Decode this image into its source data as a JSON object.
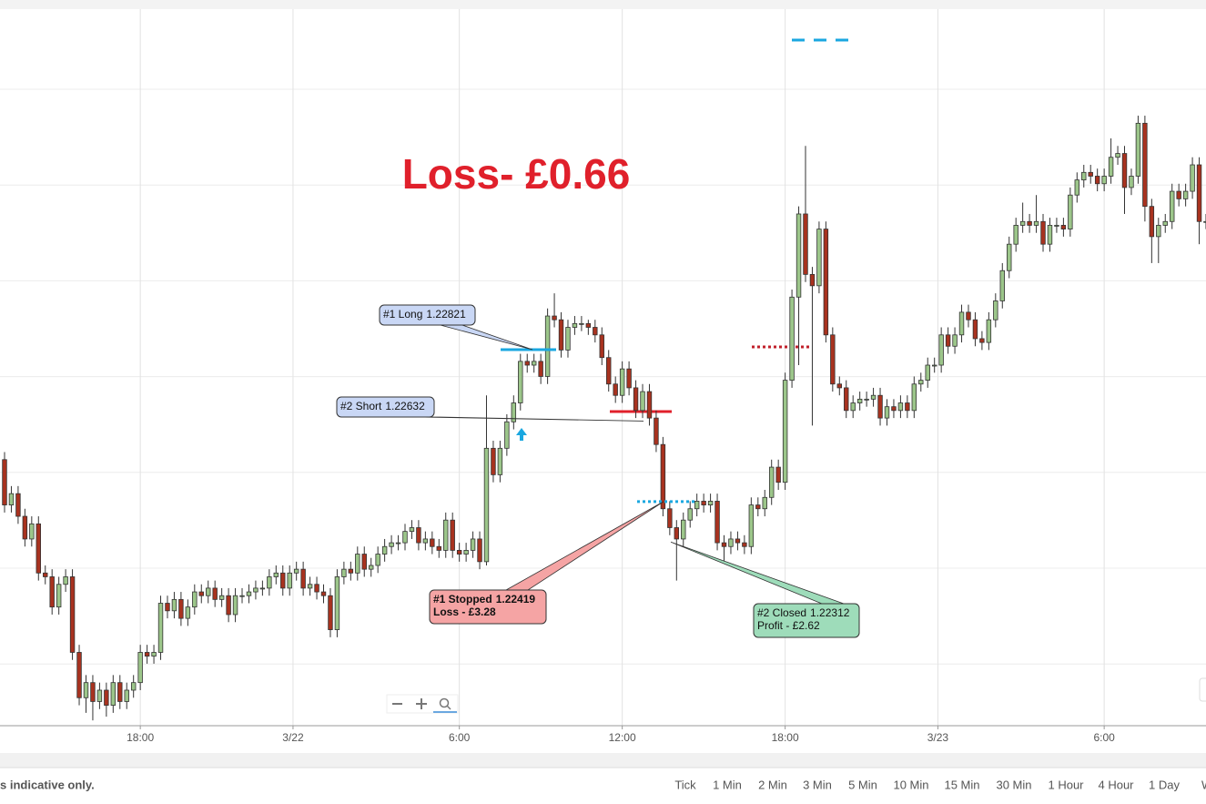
{
  "chart_data": {
    "type": "candlestick",
    "title": "Loss- £0.66",
    "up_color": "#9cc68a",
    "down_color": "#a8321f",
    "grid": true,
    "xlim": [
      -0.67,
      177
    ],
    "ylim": [
      1.21826,
      1.23722
    ],
    "xticks": [
      {
        "value": 20,
        "label": "18:00"
      },
      {
        "value": 42.5,
        "label": "3/22"
      },
      {
        "value": 67,
        "label": "6:00"
      },
      {
        "value": 91,
        "label": "12:00"
      },
      {
        "value": 115,
        "label": "18:00"
      },
      {
        "value": 137.5,
        "label": "3/23"
      },
      {
        "value": 162,
        "label": "6:00"
      }
    ],
    "open": [
      1.2253,
      1.2241,
      1.2244,
      1.2238,
      1.2232,
      1.2236,
      1.2223,
      1.2222,
      1.2214,
      1.222,
      1.2222,
      1.2202,
      1.219,
      1.2194,
      1.2189,
      1.2192,
      1.2188,
      1.2194,
      1.2189,
      1.2192,
      1.2194,
      1.2202,
      1.2201,
      1.2202,
      1.2215,
      1.2213,
      1.2216,
      1.2211,
      1.2214,
      1.2218,
      1.2217,
      1.2219,
      1.2216,
      1.2217,
      1.2212,
      1.2217,
      1.2217,
      1.2218,
      1.2219,
      1.2219,
      1.2222,
      1.2223,
      1.2219,
      1.2223,
      1.2224,
      1.2219,
      1.222,
      1.2218,
      1.2217,
      1.2208,
      1.2222,
      1.2224,
      1.2223,
      1.2228,
      1.2224,
      1.2225,
      1.2228,
      1.223,
      1.2231,
      1.2231,
      1.2234,
      1.2235,
      1.2231,
      1.2232,
      1.223,
      1.2229,
      1.2237,
      1.2229,
      1.2228,
      1.2229,
      1.2232,
      1.2226,
      1.2256,
      1.2249,
      1.2256,
      1.2263,
      1.2268,
      1.2279,
      1.2278,
      1.2279,
      1.2275,
      1.2291,
      1.229,
      1.2282,
      1.2288,
      1.2289,
      1.2289,
      1.2288,
      1.2286,
      1.228,
      1.2273,
      1.227,
      1.2277,
      1.2272,
      1.2266,
      1.2271,
      1.2264,
      1.2257,
      1.224,
      1.2235,
      1.2232,
      1.2237,
      1.224,
      1.2242,
      1.2241,
      1.2242,
      1.2231,
      1.223,
      1.2232,
      1.2231,
      1.223,
      1.2241,
      1.224,
      1.2243,
      1.2251,
      1.2247,
      1.2274,
      1.2296,
      1.2318,
      1.2302,
      1.2299,
      1.2314,
      1.2286,
      1.2273,
      1.2272,
      1.2266,
      1.2268,
      1.2269,
      1.2269,
      1.227,
      1.2264,
      1.2267,
      1.2266,
      1.2268,
      1.2266,
      1.2273,
      1.2274,
      1.2278,
      1.2278,
      1.2286,
      1.2283,
      1.2286,
      1.2292,
      1.229,
      1.2285,
      1.2284,
      1.229,
      1.2295,
      1.2303,
      1.231,
      1.2315,
      1.2316,
      1.2315,
      1.2316,
      1.231,
      1.2315,
      1.2315,
      1.2314,
      1.2323,
      1.2327,
      1.2329,
      1.2328,
      1.2326,
      1.2328,
      1.2333,
      1.2334,
      1.2325,
      1.2328,
      1.2342,
      1.232,
      1.2312,
      1.2315,
      1.2316,
      1.2324,
      1.2322,
      1.2324,
      1.2331,
      1.2316
    ],
    "high": [
      1.2255,
      1.2246,
      1.2246,
      1.224,
      1.2238,
      1.2238,
      1.2225,
      1.2224,
      1.2222,
      1.2224,
      1.2224,
      1.2204,
      1.2196,
      1.2196,
      1.2194,
      1.2194,
      1.2196,
      1.2196,
      1.2194,
      1.2196,
      1.2204,
      1.2204,
      1.2204,
      1.2217,
      1.2217,
      1.2218,
      1.2218,
      1.2216,
      1.222,
      1.222,
      1.2221,
      1.2221,
      1.2219,
      1.2219,
      1.2219,
      1.2219,
      1.222,
      1.2221,
      1.2221,
      1.2224,
      1.2225,
      1.2225,
      1.2225,
      1.2226,
      1.2226,
      1.2222,
      1.2222,
      1.222,
      1.2219,
      1.2224,
      1.2226,
      1.2226,
      1.223,
      1.223,
      1.2227,
      1.223,
      1.2232,
      1.2233,
      1.2233,
      1.2236,
      1.2237,
      1.2237,
      1.2234,
      1.2234,
      1.2232,
      1.2239,
      1.2239,
      1.2231,
      1.2231,
      1.2234,
      1.2234,
      1.227,
      1.2258,
      1.2258,
      1.2265,
      1.227,
      1.2281,
      1.2281,
      1.2281,
      1.2281,
      1.2293,
      1.2297,
      1.2292,
      1.229,
      1.2291,
      1.2291,
      1.229,
      1.229,
      1.2288,
      1.2282,
      1.2275,
      1.2279,
      1.2279,
      1.2274,
      1.2273,
      1.2273,
      1.2266,
      1.2259,
      1.2242,
      1.2237,
      1.2239,
      1.2242,
      1.2244,
      1.2244,
      1.2244,
      1.2244,
      1.2233,
      1.2234,
      1.2234,
      1.2233,
      1.2243,
      1.2243,
      1.2245,
      1.2253,
      1.2253,
      1.2276,
      1.2298,
      1.232,
      1.2336,
      1.2304,
      1.2316,
      1.2316,
      1.2288,
      1.2275,
      1.2274,
      1.227,
      1.2271,
      1.2271,
      1.2272,
      1.2272,
      1.2269,
      1.2269,
      1.227,
      1.227,
      1.2275,
      1.2276,
      1.228,
      1.228,
      1.2288,
      1.2288,
      1.2288,
      1.2294,
      1.2294,
      1.2292,
      1.2287,
      1.2292,
      1.2297,
      1.2305,
      1.2312,
      1.2317,
      1.2321,
      1.2318,
      1.2323,
      1.2318,
      1.2317,
      1.2317,
      1.2317,
      1.2325,
      1.2329,
      1.2331,
      1.2331,
      1.233,
      1.233,
      1.2338,
      1.2336,
      1.2336,
      1.233,
      1.2344,
      1.2344,
      1.2322,
      1.2317,
      1.2318,
      1.2326,
      1.2326,
      1.2326,
      1.2333,
      1.2333,
      1.2318
    ],
    "low": [
      1.2239,
      1.2239,
      1.2236,
      1.223,
      1.223,
      1.2221,
      1.222,
      1.2212,
      1.2212,
      1.2218,
      1.22,
      1.2188,
      1.2186,
      1.2184,
      1.2187,
      1.2185,
      1.2186,
      1.2187,
      1.2187,
      1.219,
      1.2192,
      1.2199,
      1.2199,
      1.22,
      1.2211,
      1.2211,
      1.2209,
      1.2209,
      1.2212,
      1.2215,
      1.2215,
      1.2214,
      1.2214,
      1.221,
      1.221,
      1.2215,
      1.2215,
      1.2216,
      1.2217,
      1.2217,
      1.222,
      1.2217,
      1.2217,
      1.2221,
      1.2217,
      1.2217,
      1.2216,
      1.2215,
      1.2206,
      1.2206,
      1.222,
      1.2221,
      1.2221,
      1.2222,
      1.2222,
      1.2223,
      1.2226,
      1.2228,
      1.2229,
      1.2229,
      1.2232,
      1.2229,
      1.2229,
      1.2228,
      1.2227,
      1.2227,
      1.2227,
      1.2226,
      1.2226,
      1.2227,
      1.2224,
      1.2225,
      1.2247,
      1.2247,
      1.2254,
      1.2261,
      1.2266,
      1.2276,
      1.2276,
      1.2273,
      1.2273,
      1.2288,
      1.228,
      1.228,
      1.2286,
      1.2287,
      1.2286,
      1.2284,
      1.2278,
      1.2271,
      1.2268,
      1.2268,
      1.227,
      1.2264,
      1.2264,
      1.2262,
      1.2255,
      1.2238,
      1.2233,
      1.2221,
      1.223,
      1.2235,
      1.2238,
      1.2239,
      1.2239,
      1.2229,
      1.2226,
      1.2228,
      1.2229,
      1.2228,
      1.2228,
      1.2238,
      1.2238,
      1.2241,
      1.2245,
      1.2245,
      1.2272,
      1.2278,
      1.23,
      1.2262,
      1.2297,
      1.2284,
      1.2271,
      1.227,
      1.2264,
      1.2264,
      1.2266,
      1.2267,
      1.2267,
      1.2262,
      1.2262,
      1.2264,
      1.2264,
      1.2264,
      1.2264,
      1.2271,
      1.2272,
      1.2276,
      1.2276,
      1.2281,
      1.2281,
      1.2284,
      1.2288,
      1.2283,
      1.2282,
      1.2282,
      1.2288,
      1.2293,
      1.2301,
      1.2308,
      1.2313,
      1.2313,
      1.2313,
      1.2308,
      1.2308,
      1.2313,
      1.2312,
      1.2312,
      1.2321,
      1.2325,
      1.2326,
      1.2324,
      1.2324,
      1.2326,
      1.2331,
      1.2318,
      1.2323,
      1.2326,
      1.2316,
      1.2305,
      1.2305,
      1.2313,
      1.2314,
      1.232,
      1.232,
      1.2322,
      1.231,
      1.2314
    ],
    "close": [
      1.2241,
      1.2244,
      1.2238,
      1.2232,
      1.2236,
      1.2223,
      1.2222,
      1.2214,
      1.222,
      1.2222,
      1.2202,
      1.219,
      1.2194,
      1.2189,
      1.2192,
      1.2188,
      1.2194,
      1.2189,
      1.2192,
      1.2194,
      1.2202,
      1.2201,
      1.2202,
      1.2215,
      1.2213,
      1.2216,
      1.2211,
      1.2214,
      1.2218,
      1.2217,
      1.2219,
      1.2216,
      1.2217,
      1.2212,
      1.2217,
      1.2217,
      1.2218,
      1.2219,
      1.2219,
      1.2222,
      1.2223,
      1.2219,
      1.2223,
      1.2224,
      1.2219,
      1.222,
      1.2218,
      1.2217,
      1.2208,
      1.2222,
      1.2224,
      1.2223,
      1.2228,
      1.2224,
      1.2225,
      1.2228,
      1.223,
      1.2231,
      1.2231,
      1.2234,
      1.2235,
      1.2231,
      1.2232,
      1.223,
      1.2229,
      1.2237,
      1.2229,
      1.2228,
      1.2229,
      1.2232,
      1.2226,
      1.2256,
      1.2249,
      1.2256,
      1.2263,
      1.2268,
      1.2279,
      1.2278,
      1.2279,
      1.2275,
      1.2291,
      1.229,
      1.2282,
      1.2288,
      1.2289,
      1.2289,
      1.2288,
      1.2286,
      1.228,
      1.2273,
      1.227,
      1.2277,
      1.2272,
      1.2266,
      1.2271,
      1.2264,
      1.2257,
      1.224,
      1.2235,
      1.2232,
      1.2237,
      1.224,
      1.2242,
      1.2241,
      1.2242,
      1.2231,
      1.223,
      1.2232,
      1.2231,
      1.223,
      1.2241,
      1.224,
      1.2243,
      1.2251,
      1.2247,
      1.2274,
      1.2296,
      1.2318,
      1.2302,
      1.2299,
      1.2314,
      1.2286,
      1.2273,
      1.2272,
      1.2266,
      1.2268,
      1.2269,
      1.2269,
      1.227,
      1.2264,
      1.2267,
      1.2266,
      1.2268,
      1.2266,
      1.2273,
      1.2274,
      1.2278,
      1.2278,
      1.2286,
      1.2283,
      1.2286,
      1.2292,
      1.229,
      1.2285,
      1.2284,
      1.229,
      1.2295,
      1.2303,
      1.231,
      1.2315,
      1.2316,
      1.2315,
      1.2316,
      1.231,
      1.2315,
      1.2315,
      1.2314,
      1.2323,
      1.2327,
      1.2329,
      1.2328,
      1.2326,
      1.2328,
      1.2333,
      1.2334,
      1.2325,
      1.2328,
      1.2342,
      1.232,
      1.2312,
      1.2315,
      1.2316,
      1.2324,
      1.2322,
      1.2324,
      1.2331,
      1.2316,
      1.2316
    ],
    "trades": [
      {
        "label": "#1 Long",
        "price": 1.22821,
        "color": "#c9d7f5"
      },
      {
        "label": "#2 Short",
        "price": 1.22632,
        "color": "#c9d7f5"
      },
      {
        "label": "#1 Stopped",
        "price": 1.22419,
        "result": "Loss - £3.28",
        "color": "#f5a4a4"
      },
      {
        "label": "#2 Closed",
        "price": 1.22312,
        "result": "Profit - £2.62",
        "color": "#9edcba"
      }
    ]
  },
  "footer": {
    "disclaimer": "s indicative only.",
    "timeframes": [
      "Tick",
      "1 Min",
      "2 Min",
      "3 Min",
      "5 Min",
      "10 Min",
      "15 Min",
      "30 Min",
      "1 Hour",
      "4 Hour",
      "1 Day",
      "W"
    ]
  }
}
